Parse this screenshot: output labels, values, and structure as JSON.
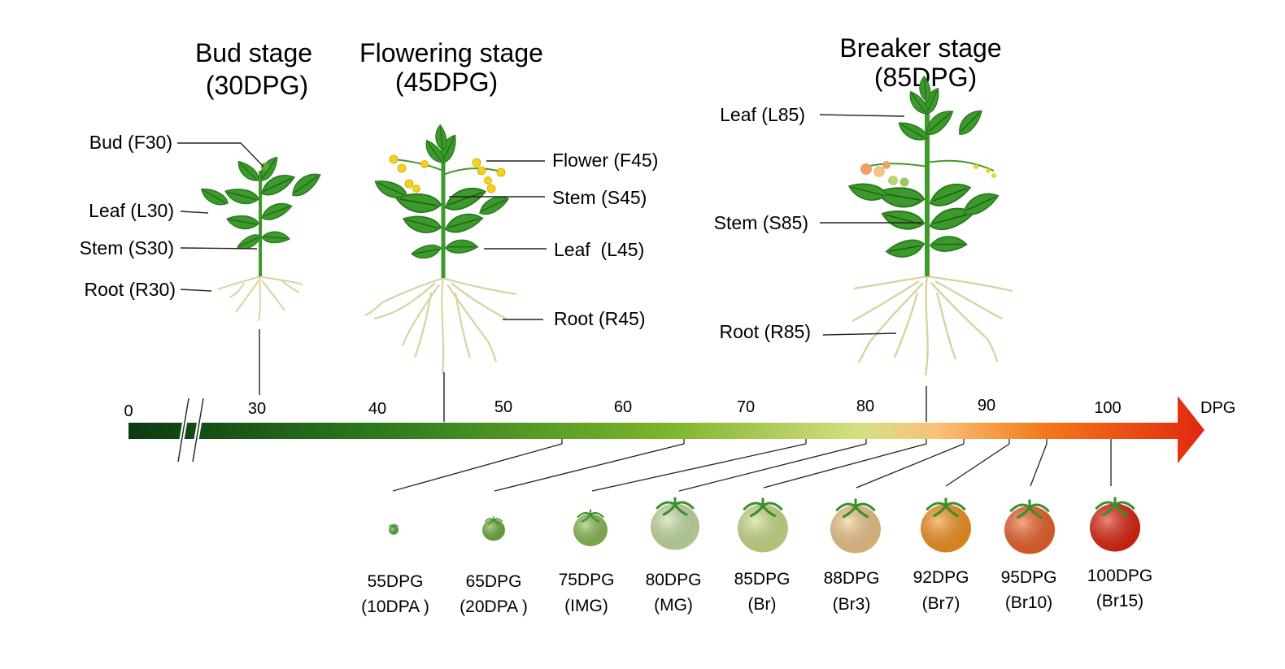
{
  "stages": [
    {
      "title_line1": "Bud stage",
      "title_line2": "(30DPG)"
    },
    {
      "title_line1": "Flowering stage",
      "title_line2": "(45DPG)"
    },
    {
      "title_line1": "Breaker stage",
      "title_line2": "(85DPG)"
    }
  ],
  "organs": {
    "bud_stage": [
      "Bud (F30)",
      "Leaf (L30)",
      "Stem (S30)",
      "Root (R30)"
    ],
    "flowering_stage": [
      "Flower (F45)",
      "Stem (S45)",
      "Leaf  (L45)",
      "Root (R45)"
    ],
    "breaker_stage": [
      "Leaf (L85)",
      "Stem (S85)",
      "Root (R85)"
    ]
  },
  "axis": {
    "unit": "DPG",
    "ticks": [
      "0",
      "30",
      "40",
      "50",
      "60",
      "70",
      "80",
      "90",
      "100"
    ],
    "gradient_colors": [
      "#0d3a12",
      "#2f7f1e",
      "#7db42a",
      "#d6df82",
      "#f8c27a",
      "#f47a1a",
      "#e0280f"
    ]
  },
  "fruits": [
    {
      "dpg": "55DPG",
      "stage": "(10DPA )",
      "color": "#5aa83a"
    },
    {
      "dpg": "65DPG",
      "stage": "(20DPA )",
      "color": "#6fae3c"
    },
    {
      "dpg": "75DPG",
      "stage": "(IMG)",
      "color": "#8bbf55"
    },
    {
      "dpg": "80DPG",
      "stage": "(MG)",
      "color": "#c8dfa6"
    },
    {
      "dpg": "85DPG",
      "stage": "(Br)",
      "color": "#cde08a"
    },
    {
      "dpg": "88DPG",
      "stage": "(Br3)",
      "color": "#f2c98a"
    },
    {
      "dpg": "92DPG",
      "stage": "(Br7)",
      "color": "#f7951e"
    },
    {
      "dpg": "95DPG",
      "stage": "(Br10)",
      "color": "#f0622a"
    },
    {
      "dpg": "100DPG",
      "stage": "(Br15)",
      "color": "#e0240e"
    }
  ]
}
